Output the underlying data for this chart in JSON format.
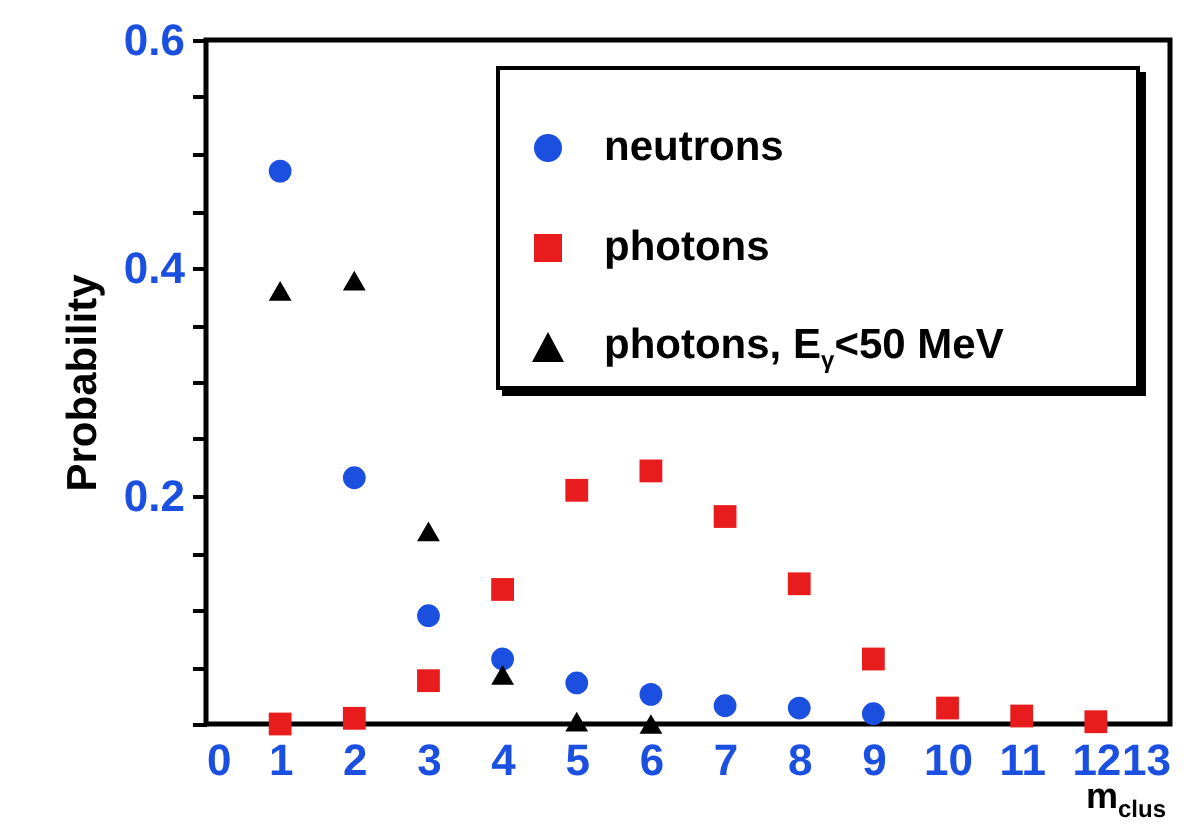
{
  "chart_data": {
    "type": "scatter",
    "xlabel": "m$_{clus}$",
    "ylabel": "Probability",
    "x": [
      1,
      2,
      3,
      4,
      5,
      6,
      7,
      8,
      9,
      10,
      11,
      12
    ],
    "series": [
      {
        "name": "neutrons",
        "color": "#1a4fe0",
        "marker": "circle",
        "values": [
          0.485,
          0.216,
          0.095,
          0.057,
          0.036,
          0.026,
          0.016,
          0.014,
          0.009,
          null,
          null,
          null
        ]
      },
      {
        "name": "photons",
        "color": "#e81c1c",
        "marker": "square",
        "values": [
          0.0,
          0.005,
          0.038,
          0.118,
          0.205,
          0.222,
          0.182,
          0.123,
          0.057,
          0.014,
          0.007,
          0.002
        ]
      },
      {
        "name": "photons, E$_{γ}$<50 MeV",
        "color": "#000000",
        "marker": "triangle",
        "values": [
          0.38,
          0.389,
          0.169,
          0.043,
          0.002,
          0.0,
          null,
          null,
          null,
          null,
          null,
          null
        ]
      }
    ],
    "xlim": [
      0,
      13
    ],
    "xticks": [
      0,
      1,
      2,
      3,
      4,
      5,
      6,
      7,
      8,
      9,
      10,
      11,
      12,
      13
    ],
    "ylim": [
      0,
      0.6
    ],
    "yticks": [
      {
        "value": 0,
        "label": null
      },
      {
        "value": 0.05,
        "label": null
      },
      {
        "value": 0.1,
        "label": null
      },
      {
        "value": 0.15,
        "label": null
      },
      0.2,
      {
        "value": 0.25,
        "label": null
      },
      {
        "value": 0.3,
        "label": null
      },
      {
        "value": 0.35,
        "label": null
      },
      0.4,
      {
        "value": 0.45,
        "label": null
      },
      {
        "value": 0.5,
        "label": null
      },
      {
        "value": 0.55,
        "label": null
      },
      0.6
    ],
    "grid": false,
    "legend": "top right"
  }
}
